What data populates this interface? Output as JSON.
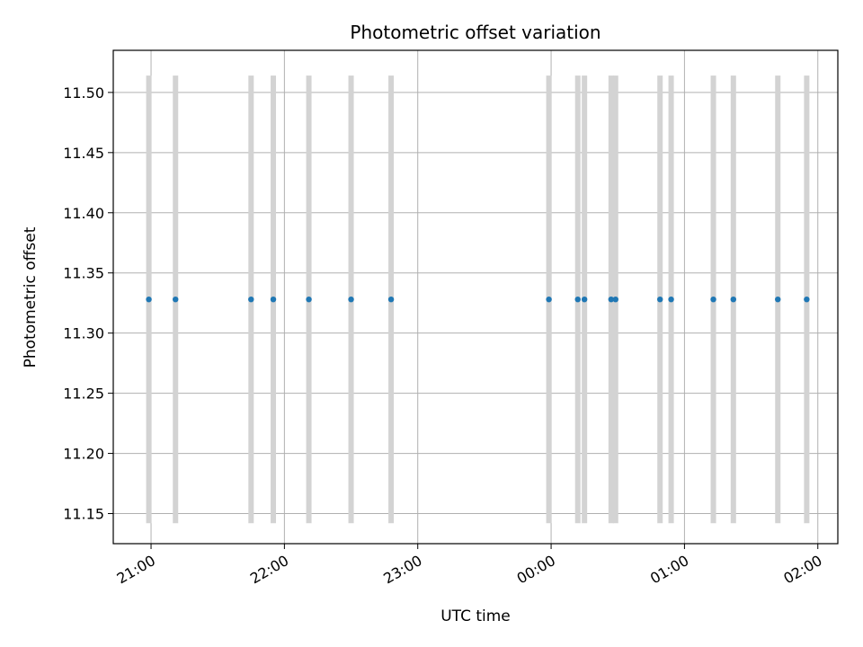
{
  "chart_data": {
    "type": "scatter",
    "title": "Photometric offset variation",
    "xlabel": "UTC time",
    "ylabel": "Photometric offset",
    "x_axis_type": "time",
    "xlim": [
      "20:43",
      "02:09"
    ],
    "ylim": [
      11.125,
      11.535
    ],
    "grid": true,
    "x_ticks": [
      {
        "time": "21:00",
        "label": "21:00"
      },
      {
        "time": "22:00",
        "label": "22:00"
      },
      {
        "time": "23:00",
        "label": "23:00"
      },
      {
        "time": "00:00",
        "label": "00:00"
      },
      {
        "time": "01:00",
        "label": "01:00"
      },
      {
        "time": "02:00",
        "label": "02:00"
      }
    ],
    "y_ticks": [
      11.15,
      11.2,
      11.25,
      11.3,
      11.35,
      11.4,
      11.45,
      11.5
    ],
    "y_tick_labels": [
      "11.15",
      "11.20",
      "11.25",
      "11.30",
      "11.35",
      "11.40",
      "11.45",
      "11.50"
    ],
    "series": [
      {
        "color": "#1f77b4",
        "error_bar_color": "#d3d3d3",
        "points": [
          {
            "time": "20:59",
            "y": 11.328,
            "err_low": 11.142,
            "err_high": 11.514
          },
          {
            "time": "21:11",
            "y": 11.328,
            "err_low": 11.142,
            "err_high": 11.514
          },
          {
            "time": "21:45",
            "y": 11.328,
            "err_low": 11.142,
            "err_high": 11.514
          },
          {
            "time": "21:55",
            "y": 11.328,
            "err_low": 11.142,
            "err_high": 11.514
          },
          {
            "time": "22:11",
            "y": 11.328,
            "err_low": 11.142,
            "err_high": 11.514
          },
          {
            "time": "22:30",
            "y": 11.328,
            "err_low": 11.142,
            "err_high": 11.514
          },
          {
            "time": "22:48",
            "y": 11.328,
            "err_low": 11.142,
            "err_high": 11.514
          },
          {
            "time": "23:59",
            "y": 11.328,
            "err_low": 11.142,
            "err_high": 11.514
          },
          {
            "time": "00:12",
            "y": 11.328,
            "err_low": 11.142,
            "err_high": 11.514
          },
          {
            "time": "00:15",
            "y": 11.328,
            "err_low": 11.142,
            "err_high": 11.514
          },
          {
            "time": "00:27",
            "y": 11.328,
            "err_low": 11.142,
            "err_high": 11.514
          },
          {
            "time": "00:29",
            "y": 11.328,
            "err_low": 11.142,
            "err_high": 11.514
          },
          {
            "time": "00:49",
            "y": 11.328,
            "err_low": 11.142,
            "err_high": 11.514
          },
          {
            "time": "00:54",
            "y": 11.328,
            "err_low": 11.142,
            "err_high": 11.514
          },
          {
            "time": "01:13",
            "y": 11.328,
            "err_low": 11.142,
            "err_high": 11.514
          },
          {
            "time": "01:22",
            "y": 11.328,
            "err_low": 11.142,
            "err_high": 11.514
          },
          {
            "time": "01:42",
            "y": 11.328,
            "err_low": 11.142,
            "err_high": 11.514
          },
          {
            "time": "01:55",
            "y": 11.328,
            "err_low": 11.142,
            "err_high": 11.514
          }
        ]
      }
    ]
  }
}
